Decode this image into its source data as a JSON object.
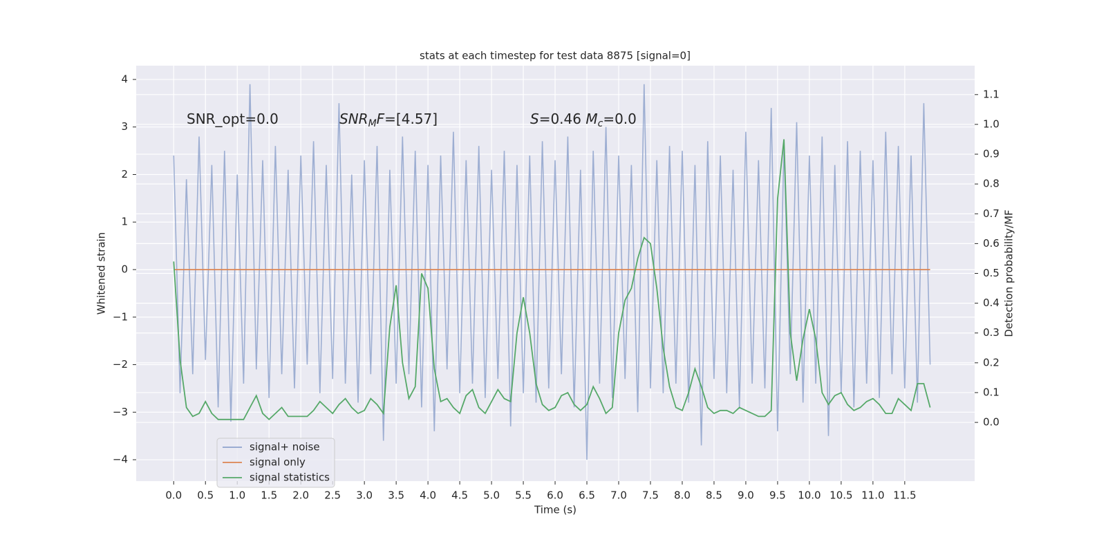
{
  "chart_data": {
    "type": "line",
    "title": "stats at each timestep for test data 8875 [signal=0]",
    "x_label": "Time (s)",
    "y_label": "Whitened strain",
    "y2_label": "Detection probability/MF",
    "annotations": [
      [
        {
          "text": "SNR_opt=0.0",
          "style": "normal"
        }
      ],
      [
        {
          "text": "SNR",
          "style": "italic"
        },
        {
          "text": "M",
          "style": "sub"
        },
        {
          "text": "F",
          "style": "italic"
        },
        {
          "text": "=[4.57]",
          "style": "normal"
        }
      ],
      [
        {
          "text": "S",
          "style": "italic"
        },
        {
          "text": "=0.46   ",
          "style": "normal"
        },
        {
          "text": "M",
          "style": "italic"
        },
        {
          "text": "c",
          "style": "sub"
        },
        {
          "text": "=0.0",
          "style": "normal"
        }
      ]
    ],
    "x": [
      0,
      0.1,
      0.2,
      0.3,
      0.4,
      0.5,
      0.6,
      0.7,
      0.8,
      0.9,
      1,
      1.1,
      1.2,
      1.3,
      1.4,
      1.5,
      1.6,
      1.7,
      1.8,
      1.9,
      2,
      2.1,
      2.2,
      2.3,
      2.4,
      2.5,
      2.6,
      2.7,
      2.8,
      2.9,
      3,
      3.1,
      3.2,
      3.3,
      3.4,
      3.5,
      3.6,
      3.7,
      3.8,
      3.9,
      4,
      4.1,
      4.2,
      4.3,
      4.4,
      4.5,
      4.6,
      4.7,
      4.8,
      4.9,
      5,
      5.1,
      5.2,
      5.3,
      5.4,
      5.5,
      5.6,
      5.7,
      5.8,
      5.9,
      6,
      6.1,
      6.2,
      6.3,
      6.4,
      6.5,
      6.6,
      6.7,
      6.8,
      6.9,
      7,
      7.1,
      7.2,
      7.3,
      7.4,
      7.5,
      7.6,
      7.7,
      7.8,
      7.9,
      8,
      8.1,
      8.2,
      8.3,
      8.4,
      8.5,
      8.6,
      8.7,
      8.8,
      8.9,
      9,
      9.1,
      9.2,
      9.3,
      9.4,
      9.5,
      9.6,
      9.7,
      9.8,
      9.9,
      10,
      10.1,
      10.2,
      10.3,
      10.4,
      10.5,
      10.6,
      10.7,
      10.8,
      10.9,
      11,
      11.1,
      11.2,
      11.3,
      11.4,
      11.5,
      11.6,
      11.7,
      11.8,
      11.9
    ],
    "series": [
      {
        "name": "signal+ noise",
        "color": "#8fa3cd",
        "axis": "y",
        "values": [
          2.4,
          -2.6,
          1.9,
          -2.2,
          2.8,
          -1.9,
          2.2,
          -2.9,
          2.5,
          -3.2,
          2.0,
          -2.4,
          3.9,
          -2.1,
          2.3,
          -2.7,
          2.6,
          -2.2,
          2.1,
          -2.5,
          2.4,
          -2.0,
          2.7,
          -2.6,
          2.2,
          -2.3,
          3.5,
          -2.4,
          2.0,
          -2.8,
          2.3,
          -2.2,
          2.6,
          -3.6,
          2.1,
          -2.4,
          2.8,
          -2.2,
          2.5,
          -2.9,
          2.2,
          -3.4,
          2.4,
          -2.1,
          2.9,
          -2.6,
          2.3,
          -2.4,
          2.6,
          -2.7,
          2.1,
          -2.3,
          2.5,
          -3.3,
          2.2,
          -2.6,
          2.4,
          -2.8,
          2.7,
          -2.5,
          2.3,
          -2.2,
          2.8,
          -2.9,
          2.1,
          -4.0,
          2.5,
          -2.4,
          3.0,
          -2.7,
          2.4,
          -2.3,
          2.2,
          -3.0,
          3.9,
          -2.5,
          2.3,
          -2.6,
          2.6,
          -2.4,
          2.5,
          -2.8,
          2.2,
          -3.7,
          2.7,
          -2.3,
          2.4,
          -2.6,
          2.1,
          -2.9,
          2.9,
          -2.4,
          2.3,
          -2.5,
          3.4,
          -3.4,
          2.6,
          -2.2,
          3.1,
          -2.8,
          2.4,
          -2.4,
          2.8,
          -3.5,
          2.2,
          -2.6,
          2.7,
          -2.9,
          2.5,
          -2.4,
          2.3,
          -2.7,
          2.9,
          -2.2,
          2.6,
          -2.5,
          2.4,
          -2.8,
          3.5,
          -2.0
        ]
      },
      {
        "name": "signal only",
        "color": "#dd8452",
        "axis": "y",
        "values": [
          0,
          0,
          0,
          0,
          0,
          0,
          0,
          0,
          0,
          0,
          0,
          0,
          0,
          0,
          0,
          0,
          0,
          0,
          0,
          0,
          0,
          0,
          0,
          0,
          0,
          0,
          0,
          0,
          0,
          0,
          0,
          0,
          0,
          0,
          0,
          0,
          0,
          0,
          0,
          0,
          0,
          0,
          0,
          0,
          0,
          0,
          0,
          0,
          0,
          0,
          0,
          0,
          0,
          0,
          0,
          0,
          0,
          0,
          0,
          0,
          0,
          0,
          0,
          0,
          0,
          0,
          0,
          0,
          0,
          0,
          0,
          0,
          0,
          0,
          0,
          0,
          0,
          0,
          0,
          0,
          0,
          0,
          0,
          0,
          0,
          0,
          0,
          0,
          0,
          0,
          0,
          0,
          0,
          0,
          0,
          0,
          0,
          0,
          0,
          0,
          0,
          0,
          0,
          0,
          0,
          0,
          0,
          0,
          0,
          0,
          0,
          0,
          0,
          0,
          0,
          0,
          0,
          0,
          0,
          0
        ]
      },
      {
        "name": "signal statistics",
        "color": "#55a868",
        "axis": "y2",
        "values": [
          0.54,
          0.21,
          0.05,
          0.02,
          0.03,
          0.07,
          0.03,
          0.01,
          0.01,
          0.01,
          0.01,
          0.01,
          0.05,
          0.09,
          0.03,
          0.01,
          0.03,
          0.05,
          0.02,
          0.02,
          0.02,
          0.02,
          0.04,
          0.07,
          0.05,
          0.03,
          0.06,
          0.08,
          0.05,
          0.03,
          0.04,
          0.08,
          0.06,
          0.03,
          0.32,
          0.46,
          0.2,
          0.08,
          0.12,
          0.5,
          0.45,
          0.18,
          0.07,
          0.08,
          0.05,
          0.03,
          0.09,
          0.11,
          0.05,
          0.03,
          0.07,
          0.11,
          0.08,
          0.07,
          0.3,
          0.42,
          0.3,
          0.13,
          0.06,
          0.04,
          0.05,
          0.09,
          0.1,
          0.06,
          0.04,
          0.06,
          0.12,
          0.08,
          0.03,
          0.05,
          0.3,
          0.41,
          0.45,
          0.55,
          0.62,
          0.6,
          0.45,
          0.25,
          0.12,
          0.05,
          0.04,
          0.1,
          0.18,
          0.12,
          0.05,
          0.03,
          0.04,
          0.04,
          0.03,
          0.05,
          0.04,
          0.03,
          0.02,
          0.02,
          0.04,
          0.75,
          0.95,
          0.3,
          0.14,
          0.28,
          0.38,
          0.28,
          0.1,
          0.06,
          0.09,
          0.1,
          0.06,
          0.04,
          0.05,
          0.07,
          0.08,
          0.06,
          0.03,
          0.03,
          0.08,
          0.06,
          0.04,
          0.13,
          0.13,
          0.05
        ]
      }
    ],
    "xlim": [
      -0.59,
      12.6
    ],
    "xticks": [
      {
        "value": 0,
        "label": "0.0"
      },
      0.5,
      {
        "value": 1,
        "label": "1.0"
      },
      1.5,
      {
        "value": 2,
        "label": "2.0"
      },
      2.5,
      {
        "value": 3,
        "label": "3.0"
      },
      3.5,
      {
        "value": 4,
        "label": "4.0"
      },
      4.5,
      {
        "value": 5,
        "label": "5.0"
      },
      5.5,
      {
        "value": 6,
        "label": "6.0"
      },
      6.5,
      {
        "value": 7,
        "label": "7.0"
      },
      7.5,
      {
        "value": 8,
        "label": "8.0"
      },
      8.5,
      {
        "value": 9,
        "label": "9.0"
      },
      9.5,
      {
        "value": 10,
        "label": "10.0"
      },
      10.5,
      {
        "value": 11,
        "label": "11.0"
      },
      11.5
    ],
    "ylim": [
      -4.45,
      4.29
    ],
    "yticks": [
      {
        "value": -4,
        "label": "−4"
      },
      {
        "value": -3,
        "label": "−3"
      },
      {
        "value": -2,
        "label": "−2"
      },
      {
        "value": -1,
        "label": "−1"
      },
      0,
      1,
      2,
      3,
      4
    ],
    "y2lim": [
      -0.197,
      1.197
    ],
    "y2ticks": [
      {
        "value": 0,
        "label": "0.0"
      },
      0.1,
      0.2,
      0.3,
      0.4,
      0.5,
      0.6,
      0.7,
      0.8,
      0.9,
      {
        "value": 1,
        "label": "1.0"
      },
      1.1
    ],
    "grid": true,
    "legend": "lower left",
    "background": "#eaeaf2"
  }
}
